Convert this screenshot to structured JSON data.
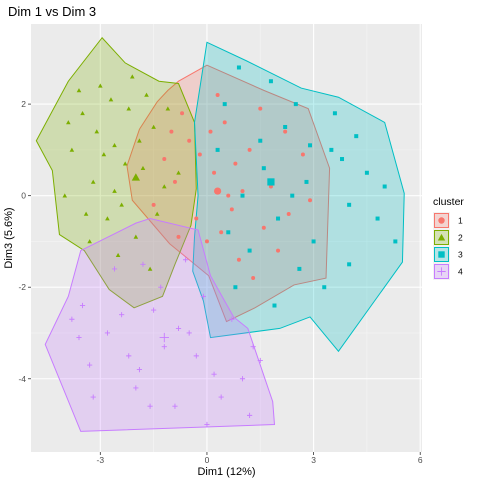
{
  "chart_data": {
    "type": "scatter",
    "title": "Dim 1 vs Dim 3",
    "xlabel": "Dim1 (12%)",
    "ylabel": "Dim3 (5.6%)",
    "xlim": [
      -4.95,
      6.05
    ],
    "ylim": [
      -5.6,
      3.75
    ],
    "x_ticks": [
      -3,
      0,
      3,
      6
    ],
    "y_ticks": [
      -4,
      -2,
      0,
      2
    ],
    "grid": true,
    "legend_title": "cluster",
    "legend_position": "right",
    "series": [
      {
        "name": "1",
        "color": "#F8766D",
        "shape": "circle",
        "centroid": [
          0.3,
          0.1
        ],
        "hull": [
          [
            0.0,
            2.85
          ],
          [
            -0.8,
            2.5
          ],
          [
            -1.1,
            2.3
          ],
          [
            -1.4,
            2.05
          ],
          [
            -1.9,
            1.45
          ],
          [
            -2.25,
            0.65
          ],
          [
            -2.1,
            -0.1
          ],
          [
            -1.05,
            -1.05
          ],
          [
            0.05,
            -1.75
          ],
          [
            0.55,
            -2.75
          ],
          [
            1.35,
            -2.45
          ],
          [
            2.45,
            -1.95
          ],
          [
            3.35,
            -1.8
          ],
          [
            3.45,
            0.6
          ],
          [
            2.85,
            1.9
          ],
          [
            1.6,
            2.3
          ]
        ],
        "points": [
          [
            -0.5,
            1.2
          ],
          [
            0.2,
            0.5
          ],
          [
            0.5,
            1.6
          ],
          [
            -0.9,
            0.3
          ],
          [
            0.7,
            -0.3
          ],
          [
            1.2,
            1.0
          ],
          [
            -0.3,
            -0.5
          ],
          [
            1.8,
            0.2
          ],
          [
            0.0,
            -1.0
          ],
          [
            -1.2,
            0.8
          ],
          [
            2.3,
            -0.4
          ],
          [
            0.9,
            -1.4
          ],
          [
            1.5,
            1.9
          ],
          [
            -0.7,
            1.8
          ],
          [
            2.7,
            0.9
          ],
          [
            0.4,
            -0.8
          ],
          [
            -1.5,
            -0.2
          ],
          [
            1.0,
            0.1
          ],
          [
            2.0,
            -1.2
          ],
          [
            0.3,
            2.2
          ],
          [
            -0.2,
            0.9
          ],
          [
            0.8,
            0.7
          ],
          [
            1.6,
            -0.7
          ],
          [
            -0.8,
            -0.9
          ],
          [
            2.9,
            -0.1
          ],
          [
            0.1,
            1.4
          ],
          [
            1.3,
            -1.8
          ],
          [
            -1.0,
            1.4
          ],
          [
            0.6,
            0.0
          ],
          [
            2.2,
            1.4
          ]
        ]
      },
      {
        "name": "2",
        "color": "#7CAE00",
        "shape": "triangle",
        "centroid": [
          -2.0,
          0.4
        ],
        "hull": [
          [
            -2.95,
            3.45
          ],
          [
            -2.3,
            2.9
          ],
          [
            -1.35,
            2.5
          ],
          [
            -0.8,
            2.45
          ],
          [
            -0.35,
            1.6
          ],
          [
            -0.3,
            0.15
          ],
          [
            -0.45,
            -0.65
          ],
          [
            -0.9,
            -1.5
          ],
          [
            -1.25,
            -2.2
          ],
          [
            -2.05,
            -2.45
          ],
          [
            -2.75,
            -2.05
          ],
          [
            -3.45,
            -1.2
          ],
          [
            -4.15,
            -0.85
          ],
          [
            -4.35,
            0.55
          ],
          [
            -4.8,
            1.2
          ],
          [
            -3.9,
            2.5
          ]
        ],
        "points": [
          [
            -3.5,
            1.8
          ],
          [
            -3.0,
            2.4
          ],
          [
            -2.6,
            1.1
          ],
          [
            -2.2,
            1.9
          ],
          [
            -1.8,
            0.6
          ],
          [
            -3.2,
            0.3
          ],
          [
            -2.8,
            -0.5
          ],
          [
            -1.5,
            1.5
          ],
          [
            -3.8,
            1.0
          ],
          [
            -2.4,
            -0.2
          ],
          [
            -1.2,
            0.2
          ],
          [
            -3.1,
            1.4
          ],
          [
            -2.0,
            -0.9
          ],
          [
            -1.6,
            -1.6
          ],
          [
            -2.7,
            2.1
          ],
          [
            -3.4,
            -0.4
          ],
          [
            -2.3,
            0.7
          ],
          [
            -1.9,
            1.2
          ],
          [
            -4.0,
            0.0
          ],
          [
            -2.5,
            -1.3
          ],
          [
            -1.1,
            1.9
          ],
          [
            -2.9,
            0.9
          ],
          [
            -3.6,
            2.3
          ],
          [
            -1.4,
            -0.4
          ],
          [
            -2.1,
            2.6
          ],
          [
            -3.3,
            -1.0
          ],
          [
            -0.8,
            0.5
          ],
          [
            -2.6,
            0.1
          ],
          [
            -1.7,
            2.2
          ],
          [
            -3.9,
            1.6
          ]
        ]
      },
      {
        "name": "3",
        "color": "#00BFC4",
        "shape": "square",
        "centroid": [
          1.8,
          0.3
        ],
        "hull": [
          [
            0.0,
            3.35
          ],
          [
            1.1,
            2.95
          ],
          [
            2.65,
            2.35
          ],
          [
            3.7,
            2.15
          ],
          [
            5.0,
            1.6
          ],
          [
            5.55,
            0.05
          ],
          [
            5.5,
            -1.45
          ],
          [
            3.7,
            -3.4
          ],
          [
            2.9,
            -2.65
          ],
          [
            2.05,
            -2.9
          ],
          [
            0.1,
            -3.1
          ],
          [
            -0.1,
            -2.3
          ],
          [
            -0.4,
            -1.65
          ],
          [
            -0.35,
            -0.9
          ],
          [
            -0.25,
            0.0
          ],
          [
            -0.35,
            1.6
          ]
        ],
        "points": [
          [
            0.5,
            2.0
          ],
          [
            1.5,
            1.2
          ],
          [
            2.5,
            2.0
          ],
          [
            3.5,
            1.0
          ],
          [
            4.5,
            0.5
          ],
          [
            1.0,
            0.0
          ],
          [
            2.0,
            -0.5
          ],
          [
            3.0,
            -1.0
          ],
          [
            4.0,
            -1.5
          ],
          [
            0.8,
            -2.0
          ],
          [
            1.8,
            2.5
          ],
          [
            2.8,
            0.3
          ],
          [
            3.8,
            0.8
          ],
          [
            5.0,
            0.2
          ],
          [
            0.3,
            1.0
          ],
          [
            1.2,
            -1.2
          ],
          [
            2.2,
            1.5
          ],
          [
            3.3,
            -2.0
          ],
          [
            4.2,
            1.3
          ],
          [
            0.6,
            -0.8
          ],
          [
            1.6,
            0.6
          ],
          [
            2.6,
            -1.6
          ],
          [
            3.6,
            1.8
          ],
          [
            4.8,
            -0.5
          ],
          [
            0.9,
            2.8
          ],
          [
            1.9,
            -2.4
          ],
          [
            2.9,
            1.1
          ],
          [
            4.0,
            -0.2
          ],
          [
            5.3,
            -1.0
          ],
          [
            2.4,
            0.0
          ]
        ]
      },
      {
        "name": "4",
        "color": "#C77CFF",
        "shape": "cross",
        "centroid": [
          -1.2,
          -3.1
        ],
        "hull": [
          [
            -1.6,
            -0.5
          ],
          [
            -0.25,
            -0.75
          ],
          [
            0.1,
            -1.75
          ],
          [
            0.75,
            -2.65
          ],
          [
            1.15,
            -2.9
          ],
          [
            1.85,
            -4.5
          ],
          [
            1.9,
            -5.0
          ],
          [
            -3.55,
            -5.15
          ],
          [
            -4.55,
            -3.25
          ],
          [
            -3.9,
            -2.2
          ],
          [
            -3.55,
            -1.2
          ],
          [
            -2.0,
            -0.6
          ]
        ],
        "points": [
          [
            -3.8,
            -2.7
          ],
          [
            -3.5,
            -2.4
          ],
          [
            -3.3,
            -3.7
          ],
          [
            -2.8,
            -3.0
          ],
          [
            -2.2,
            -3.5
          ],
          [
            -1.9,
            -3.8
          ],
          [
            -1.5,
            -2.5
          ],
          [
            -1.2,
            -3.3
          ],
          [
            -0.8,
            -2.9
          ],
          [
            -0.3,
            -3.5
          ],
          [
            0.2,
            -3.9
          ],
          [
            0.7,
            -2.7
          ],
          [
            1.0,
            -4.0
          ],
          [
            1.3,
            -3.3
          ],
          [
            -2.6,
            -1.6
          ],
          [
            -1.8,
            -1.5
          ],
          [
            -0.6,
            -1.4
          ],
          [
            -0.1,
            -2.2
          ],
          [
            -3.2,
            -4.4
          ],
          [
            -2.0,
            -4.2
          ],
          [
            -0.9,
            -4.6
          ],
          [
            0.4,
            -4.4
          ],
          [
            1.5,
            -3.6
          ],
          [
            -1.3,
            -2.0
          ],
          [
            -0.5,
            -3.0
          ],
          [
            -2.4,
            -2.6
          ],
          [
            -3.6,
            -3.1
          ],
          [
            0.0,
            -5.0
          ],
          [
            -1.6,
            -4.6
          ],
          [
            1.2,
            -4.8
          ]
        ]
      }
    ]
  }
}
